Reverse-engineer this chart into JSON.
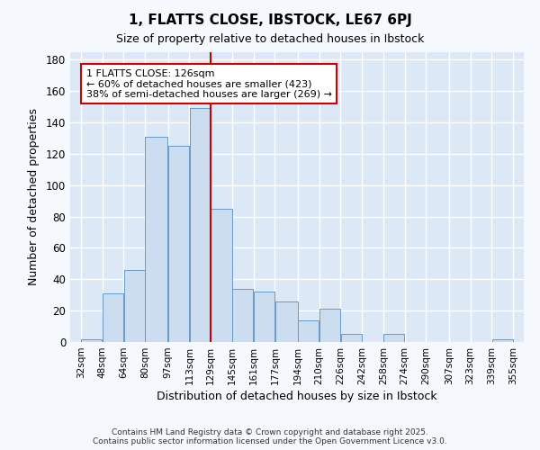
{
  "title1": "1, FLATTS CLOSE, IBSTOCK, LE67 6PJ",
  "title2": "Size of property relative to detached houses in Ibstock",
  "xlabel": "Distribution of detached houses by size in Ibstock",
  "ylabel": "Number of detached properties",
  "bar_left_edges": [
    32,
    48,
    64,
    80,
    97,
    113,
    129,
    145,
    161,
    177,
    194,
    210,
    226,
    242,
    258,
    274,
    290,
    307,
    323,
    339
  ],
  "bar_widths": [
    16,
    16,
    16,
    17,
    16,
    16,
    16,
    16,
    16,
    17,
    16,
    16,
    16,
    16,
    16,
    16,
    17,
    16,
    16,
    16
  ],
  "bar_heights": [
    2,
    31,
    46,
    131,
    125,
    149,
    85,
    34,
    32,
    26,
    14,
    21,
    5,
    0,
    5,
    0,
    0,
    0,
    0,
    2
  ],
  "bar_color": "#ccddf0",
  "bar_edge_color": "#6699cc",
  "tick_labels": [
    "32sqm",
    "48sqm",
    "64sqm",
    "80sqm",
    "97sqm",
    "113sqm",
    "129sqm",
    "145sqm",
    "161sqm",
    "177sqm",
    "194sqm",
    "210sqm",
    "226sqm",
    "242sqm",
    "258sqm",
    "274sqm",
    "290sqm",
    "307sqm",
    "323sqm",
    "339sqm",
    "355sqm"
  ],
  "tick_positions": [
    32,
    48,
    64,
    80,
    97,
    113,
    129,
    145,
    161,
    177,
    194,
    210,
    226,
    242,
    258,
    274,
    290,
    307,
    323,
    339,
    355
  ],
  "red_line_x": 129,
  "annotation_line1": "1 FLATTS CLOSE: 126sqm",
  "annotation_line2": "← 60% of detached houses are smaller (423)",
  "annotation_line3": "38% of semi-detached houses are larger (269) →",
  "annotation_box_color": "#ffffff",
  "annotation_box_edge": "#cc0000",
  "ylim": [
    0,
    185
  ],
  "xlim": [
    24,
    363
  ],
  "bg_color": "#dce8f5",
  "grid_color": "#ffffff",
  "fig_bg_color": "#f5f8fd",
  "footer1": "Contains HM Land Registry data © Crown copyright and database right 2025.",
  "footer2": "Contains public sector information licensed under the Open Government Licence v3.0.",
  "yticks": [
    0,
    20,
    40,
    60,
    80,
    100,
    120,
    140,
    160,
    180
  ]
}
